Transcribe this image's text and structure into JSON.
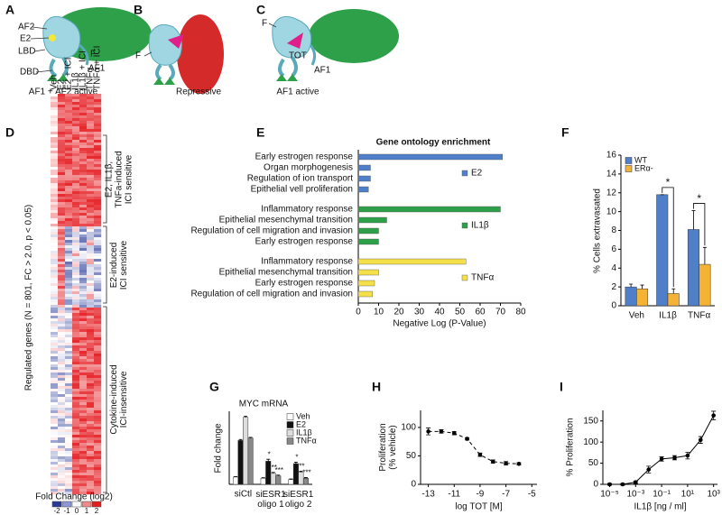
{
  "panel_labels": [
    "A",
    "B",
    "C",
    "D",
    "E",
    "F",
    "G",
    "H",
    "I"
  ],
  "diagrams": {
    "A": {
      "labels": [
        "AF2",
        "E2",
        "LBD",
        "F",
        "DBD",
        "AF1"
      ],
      "caption": "AF1 + AF2 active"
    },
    "B": {
      "labels": [
        "F"
      ],
      "caption": "Repressive"
    },
    "C": {
      "labels": [
        "F",
        "TOT",
        "AF1"
      ],
      "caption": "AF1 active"
    }
  },
  "heatmap": {
    "columns": [
      "Veh",
      "E2",
      "E2 + ICI",
      "IL1β",
      "IL1β + ICI",
      "TNFα",
      "TNFα + ICI"
    ],
    "ylabel": "Regulated genes (N = 801, FC > 2.0, p < 0.05)",
    "clusters": [
      "E2, IL1β,\nTNFa-induced\nICI sensitive",
      "E2-induced\nICI sensitive",
      "Cytokine-induced\nICI-insensitive"
    ],
    "colorbar_title": "Fold Change (log2)",
    "colorbar_ticks": [
      -2,
      -1,
      0,
      1,
      2
    ]
  },
  "chart_data": [
    {
      "type": "hbar",
      "title": "Gene ontology enrichment",
      "xlabel": "Negative Log (P-Value)",
      "xlim": [
        0,
        80
      ],
      "xticks": [
        0,
        10,
        20,
        30,
        40,
        50,
        60,
        70,
        80
      ],
      "groups": [
        {
          "name": "E2",
          "color": "#4f7fc9",
          "categories": [
            "Early estrogen response",
            "Organ morphogenesis",
            "Regulation of ion transport",
            "Epithelial vell proliferation"
          ],
          "values": [
            71,
            6,
            6,
            5
          ]
        },
        {
          "name": "IL1β",
          "color": "#2ea04a",
          "categories": [
            "Inflammatory response",
            "Epithelial mesenchymal transition",
            "Regulation of cell migration and invasion",
            "Early estrogen response"
          ],
          "values": [
            70,
            14,
            10,
            10
          ]
        },
        {
          "name": "TNFα",
          "color": "#f5e04a",
          "categories": [
            "Inflammatory response",
            "Epithelial mesenchymal transition",
            "Early estrogen response",
            "Regulation of cell migration and invasion"
          ],
          "values": [
            53,
            10,
            8,
            7
          ]
        }
      ]
    },
    {
      "type": "bar",
      "ylabel": "% Cells extravasated",
      "categories": [
        "Veh",
        "IL1β",
        "TNFα"
      ],
      "ylim": [
        0,
        16
      ],
      "yticks": [
        0,
        2,
        4,
        6,
        8,
        10,
        12,
        14,
        16
      ],
      "legend": "upper left",
      "significance": [
        null,
        "*",
        "*"
      ],
      "series": [
        {
          "name": "WT",
          "color": "#4f7fc9",
          "values": [
            2.0,
            11.8,
            8.1
          ],
          "errors": [
            0.3,
            0,
            2.0
          ]
        },
        {
          "name": "ERα-",
          "color": "#f5b335",
          "values": [
            1.8,
            1.3,
            4.4
          ],
          "errors": [
            0.4,
            0.5,
            1.8
          ]
        }
      ]
    },
    {
      "type": "bar",
      "title": "MYC mRNA",
      "ylabel": "Fold change",
      "categories": [
        "siCtl",
        "siESR1\noligo 1",
        "siESR1\noligo 2"
      ],
      "ylim": [
        0,
        30
      ],
      "legend": "upper right",
      "series": [
        {
          "name": "Veh",
          "color": "#ffffff",
          "values": [
            3,
            2.5,
            2
          ],
          "errors": [
            0.2,
            0.2,
            0.2
          ]
        },
        {
          "name": "E2",
          "color": "#111111",
          "values": [
            18,
            9.5,
            8.5
          ],
          "errors": [
            0.4,
            0.8,
            0.6
          ],
          "significance": [
            null,
            "*",
            "*"
          ]
        },
        {
          "name": "IL1β",
          "color": "#dddddd",
          "values": [
            27.5,
            4.5,
            5
          ],
          "errors": [
            0.5,
            0.4,
            0.4
          ],
          "significance": [
            null,
            "**",
            "**"
          ]
        },
        {
          "name": "TNFα",
          "color": "#888888",
          "values": [
            19,
            3.5,
            2.5
          ],
          "errors": [
            0.3,
            0.3,
            0.3
          ],
          "significance": [
            null,
            "***",
            "***"
          ]
        }
      ]
    },
    {
      "type": "line",
      "xlabel": "log TOT [M]",
      "ylabel": "Proliferation\n(% vehicle)",
      "line_style": "dashed",
      "x": [
        -13,
        -12,
        -11,
        -10,
        -9,
        -8,
        -7,
        -6
      ],
      "values": [
        93,
        93,
        90,
        80,
        52,
        40,
        37,
        36
      ],
      "errors": [
        6,
        3,
        3,
        2,
        3,
        3,
        3,
        2
      ],
      "xlim": [
        -13.6,
        -4.6
      ],
      "xticks": [
        -13,
        -11,
        -9,
        -7,
        -5
      ],
      "ylim": [
        0,
        130
      ],
      "yticks": [
        0,
        50,
        100
      ]
    },
    {
      "type": "line",
      "xlabel": "IL1β [ng / ml]",
      "ylabel": "% Proliferation",
      "line_style": "solid",
      "log_x": true,
      "x": [
        1e-05,
        0.0001,
        0.001,
        0.01,
        0.1,
        1,
        10,
        100,
        1000
      ],
      "values": [
        0,
        0,
        5,
        35,
        60,
        63,
        68,
        105,
        163
      ],
      "errors": [
        2,
        2,
        3,
        8,
        5,
        5,
        8,
        8,
        10
      ],
      "xlim": [
        3e-06,
        2000
      ],
      "xticks": [
        {
          "value": 1e-05,
          "label": "10⁻⁵"
        },
        {
          "value": 0.001,
          "label": "10⁻³"
        },
        {
          "value": 0.1,
          "label": "10⁻¹"
        },
        {
          "value": 10,
          "label": "10¹"
        },
        {
          "value": 1000,
          "label": "10³"
        }
      ],
      "ylim": [
        0,
        175
      ],
      "yticks": [
        0,
        50,
        100,
        150
      ]
    }
  ]
}
